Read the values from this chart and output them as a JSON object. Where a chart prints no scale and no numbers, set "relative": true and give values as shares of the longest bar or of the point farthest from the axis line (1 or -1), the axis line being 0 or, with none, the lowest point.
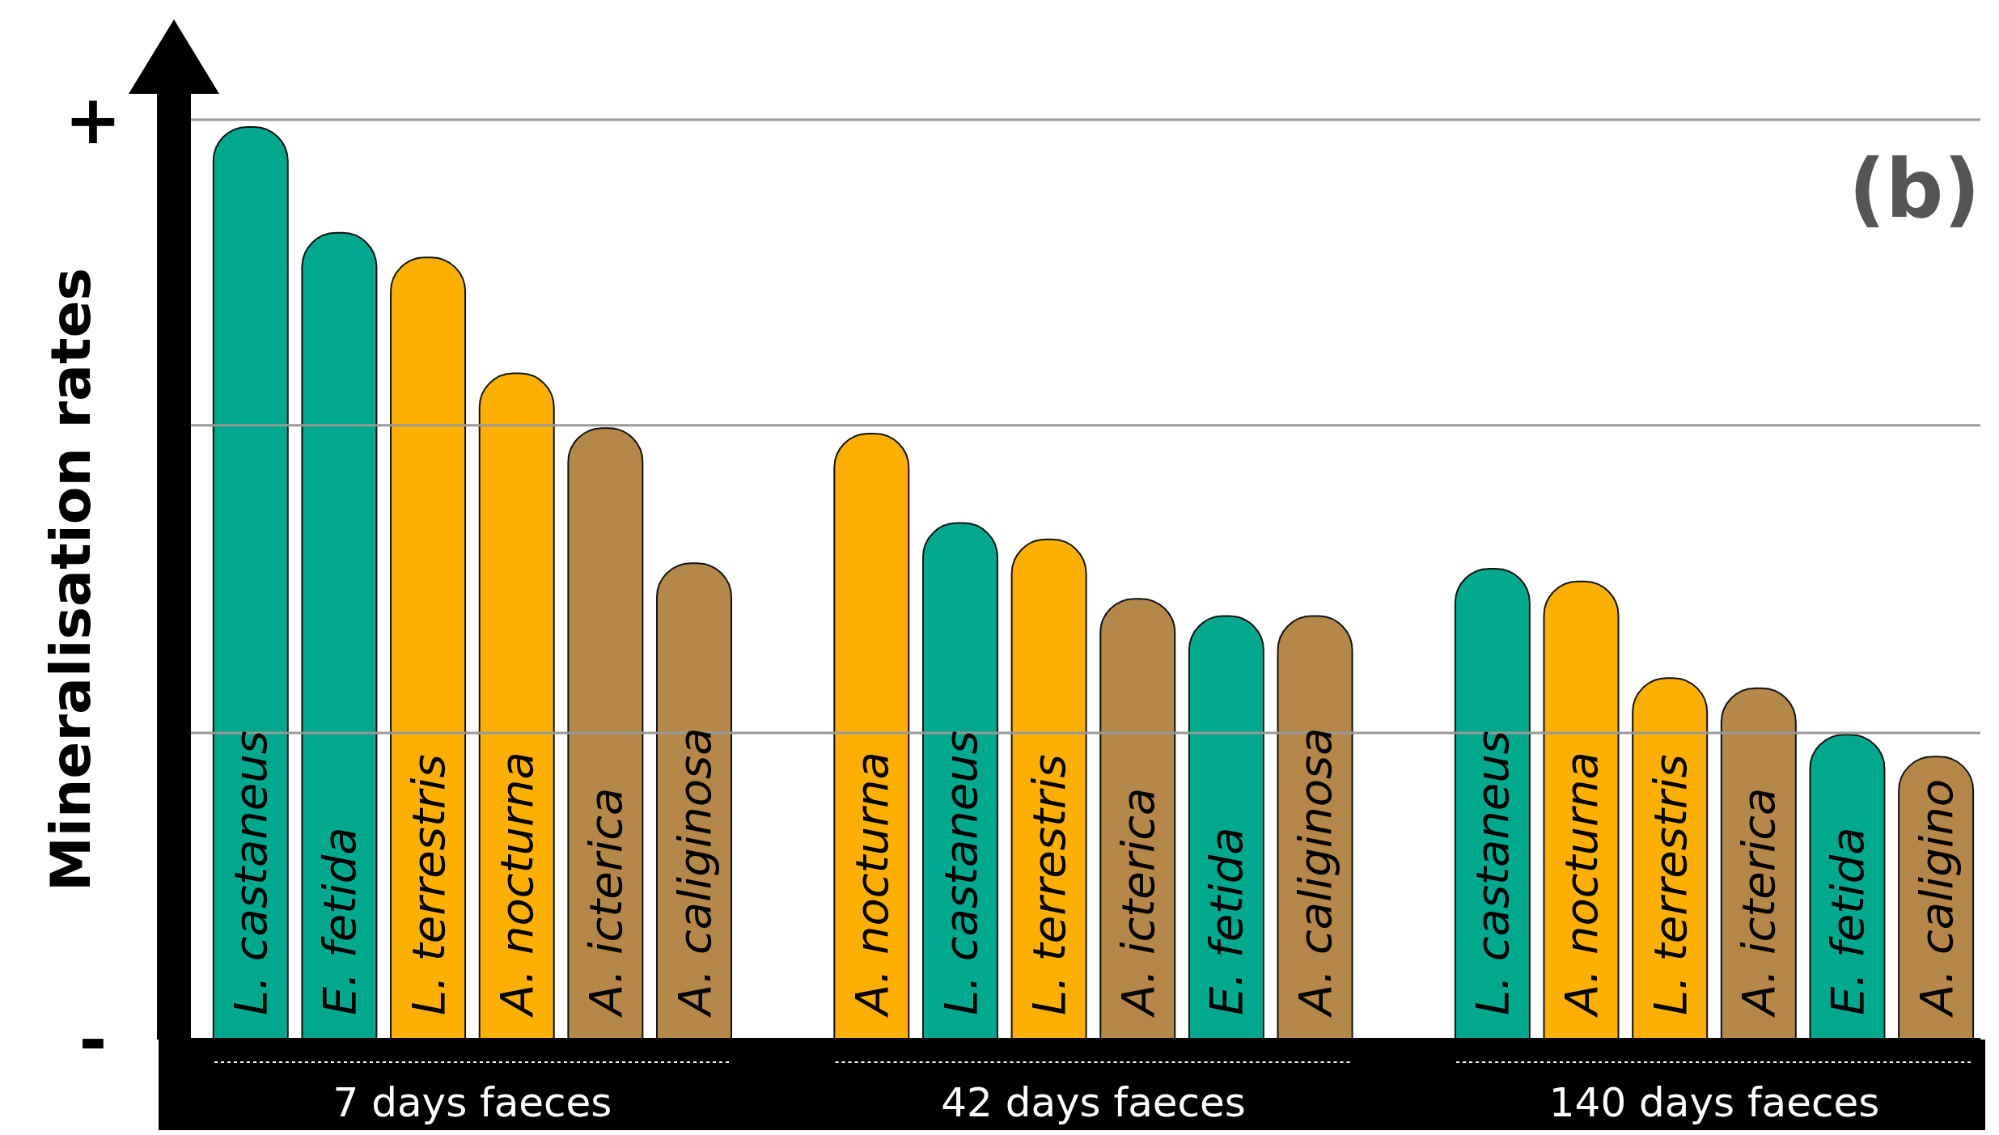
{
  "chart_data": {
    "type": "bar",
    "relative": true,
    "ylabel": "Mineralisation rates",
    "categories": [
      "L. castaneus",
      "E. fetida",
      "L. terrestris",
      "A. nocturna",
      "A. icterica",
      "A. caliginosa",
      null,
      "A. nocturna",
      "L. castaneus",
      "L. terrestris",
      "A. icterica",
      "E. fetida",
      "A. caliginosa",
      null,
      "L. castaneus",
      "A. nocturna",
      "L. terrestris",
      "A. icterica",
      "E. fetida",
      "A. caligino"
    ],
    "values": [
      1.0,
      0.884,
      0.857,
      0.73,
      0.67,
      0.522,
      null,
      0.664,
      0.566,
      0.548,
      0.483,
      0.464,
      0.464,
      null,
      0.516,
      0.502,
      0.396,
      0.385,
      0.334,
      0.31
    ],
    "colors": [
      "#00a88e",
      "#00a88e",
      "#fdb003",
      "#fdb003",
      "#b5884a",
      "#b5884a",
      null,
      "#fdb003",
      "#00a88e",
      "#fdb003",
      "#b5884a",
      "#00a88e",
      "#b5884a",
      null,
      "#00a88e",
      "#fdb003",
      "#fdb003",
      "#b5884a",
      "#00a88e",
      "#b5884a"
    ],
    "ref_lines": [
      {
        "axis": "y",
        "value": 0.336,
        "color": "#999999"
      },
      {
        "axis": "y",
        "value": 0.673,
        "color": "#999999"
      },
      {
        "axis": "y",
        "value": 1.008,
        "color": "#999999"
      }
    ],
    "annotations": [
      "(b)",
      "7 days faeces",
      "42 days faeces",
      "140 days faeces",
      "+",
      "-"
    ]
  }
}
